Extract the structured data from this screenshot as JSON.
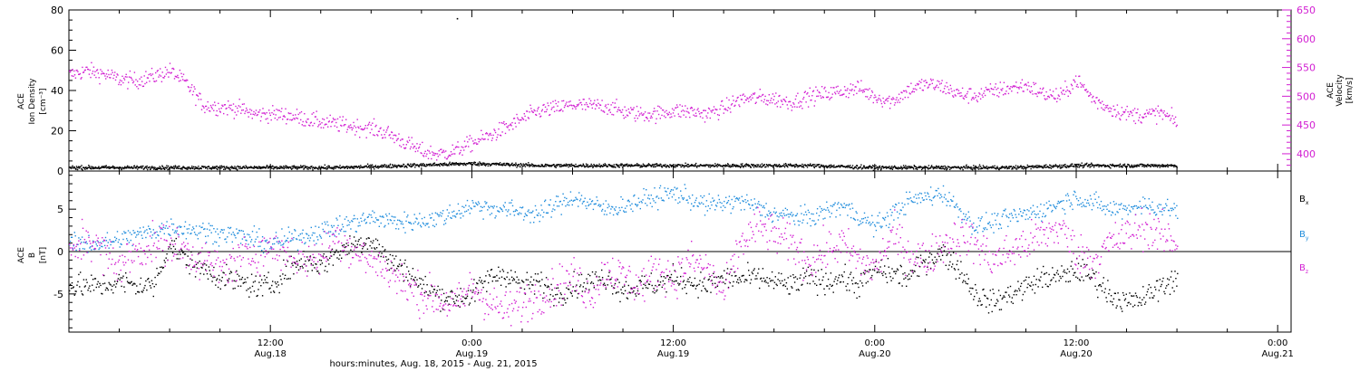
{
  "colors": {
    "ink": "#000000",
    "magenta": "#d21ed2",
    "blue": "#1e8cdc"
  },
  "top_panel": {
    "left_label": [
      "ACE",
      "Ion Density",
      "[cm⁻³]"
    ],
    "right_label": [
      "ACE",
      "Velocity",
      "[km/s]"
    ]
  },
  "bottom_panel": {
    "left_label": [
      "ACE",
      "B",
      "[nT]"
    ],
    "legend": [
      {
        "name": "B",
        "sub": "x",
        "color": "#000000"
      },
      {
        "name": "B",
        "sub": "y",
        "color": "#1e8cdc"
      },
      {
        "name": "B",
        "sub": "z",
        "color": "#d21ed2"
      }
    ]
  },
  "xaxis": {
    "title": "hours:minutes, Aug. 18, 2015 - Aug. 21, 2015",
    "ticks": [
      {
        "h": 12,
        "time": "12:00",
        "date": "Aug.18"
      },
      {
        "h": 24,
        "time": "0:00",
        "date": "Aug.19"
      },
      {
        "h": 36,
        "time": "12:00",
        "date": "Aug.19"
      },
      {
        "h": 48,
        "time": "0:00",
        "date": "Aug.20"
      },
      {
        "h": 60,
        "time": "12:00",
        "date": "Aug.20"
      },
      {
        "h": 72,
        "time": "0:00",
        "date": "Aug.21"
      }
    ]
  },
  "chart_data": [
    {
      "type": "scatter",
      "panel": "top",
      "xlim_hours": [
        0,
        72.8
      ],
      "ylim_left": [
        0,
        80
      ],
      "yticks_left": [
        0,
        20,
        40,
        60,
        80
      ],
      "ylim_right": [
        370,
        650
      ],
      "yticks_right": [
        400,
        450,
        500,
        550,
        600,
        650
      ],
      "series": [
        {
          "axis": "left",
          "color": "#000000",
          "scatter": 0.8,
          "x": [
            0,
            4,
            8,
            12,
            16,
            20,
            24,
            28,
            32,
            36,
            40,
            44,
            48,
            52,
            56,
            60,
            64,
            66
          ],
          "y": [
            2,
            2,
            2,
            2,
            2,
            3,
            4,
            3,
            3,
            3,
            3,
            3,
            2,
            2,
            2,
            3,
            3,
            3
          ]
        },
        {
          "axis": "right",
          "color": "#d21ed2",
          "scatter": 12,
          "x": [
            0,
            1,
            2,
            3,
            4,
            5,
            6,
            7,
            8,
            9,
            10,
            11,
            12,
            13,
            14,
            15,
            16,
            17,
            18,
            19,
            20,
            21,
            22,
            23,
            24,
            25,
            26,
            27,
            28,
            29,
            30,
            31,
            32,
            33,
            34,
            35,
            36,
            37,
            38,
            39,
            40,
            41,
            42,
            43,
            44,
            45,
            46,
            47,
            48,
            49,
            50,
            51,
            52,
            53,
            54,
            55,
            56,
            57,
            58,
            59,
            60,
            61,
            62,
            63,
            64,
            65,
            66
          ],
          "y": [
            538,
            545,
            540,
            530,
            528,
            535,
            545,
            522,
            485,
            482,
            480,
            470,
            470,
            468,
            462,
            456,
            452,
            448,
            445,
            436,
            420,
            405,
            400,
            406,
            420,
            432,
            446,
            462,
            476,
            480,
            486,
            484,
            484,
            474,
            470,
            470,
            476,
            474,
            470,
            480,
            496,
            498,
            496,
            490,
            500,
            505,
            510,
            515,
            500,
            492,
            512,
            522,
            518,
            504,
            502,
            510,
            515,
            520,
            505,
            500,
            530,
            495,
            480,
            470,
            468,
            472,
            455
          ]
        }
      ]
    },
    {
      "type": "scatter",
      "panel": "bottom",
      "xlim_hours": [
        0,
        72.8
      ],
      "ylim": [
        -9.5,
        9.5
      ],
      "yticks": [
        -5,
        0,
        5
      ],
      "series": [
        {
          "name": "Bx",
          "color": "#000000",
          "scatter": 1.2,
          "x": [
            0,
            1,
            2,
            3,
            4,
            5,
            6,
            7,
            8,
            9,
            10,
            11,
            12,
            13,
            14,
            15,
            16,
            17,
            18,
            19,
            20,
            21,
            22,
            23,
            24,
            25,
            26,
            27,
            28,
            29,
            30,
            31,
            32,
            33,
            34,
            35,
            36,
            37,
            38,
            39,
            40,
            41,
            42,
            43,
            44,
            45,
            46,
            47,
            48,
            49,
            50,
            51,
            52,
            53,
            54,
            55,
            56,
            57,
            58,
            59,
            60,
            61,
            62,
            63,
            64,
            65,
            66
          ],
          "y": [
            -4,
            -4,
            -4,
            -3.5,
            -4,
            -4,
            1,
            -1,
            -2,
            -3,
            -3.5,
            -4,
            -4,
            -2,
            -1,
            -1.5,
            0,
            1,
            1.5,
            -1,
            -2,
            -4,
            -5,
            -5.5,
            -5,
            -3,
            -2.5,
            -4,
            -3.5,
            -5,
            -4,
            -3.5,
            -3,
            -4.5,
            -4,
            -3.8,
            -3,
            -3.5,
            -4,
            -3,
            -3.2,
            -3,
            -3.5,
            -4,
            -3,
            -3.5,
            -3,
            -4,
            -2,
            -2.5,
            -3,
            -1,
            0,
            -2,
            -5,
            -6,
            -5,
            -4,
            -3,
            -3,
            -2,
            -3,
            -5,
            -6,
            -5.5,
            -4,
            -3
          ]
        },
        {
          "name": "By",
          "color": "#1e8cdc",
          "scatter": 1.0,
          "x": [
            0,
            2,
            4,
            6,
            8,
            10,
            12,
            14,
            16,
            18,
            20,
            22,
            24,
            26,
            28,
            30,
            32,
            34,
            36,
            38,
            40,
            42,
            44,
            46,
            48,
            50,
            52,
            54,
            56,
            58,
            60,
            62,
            64,
            66
          ],
          "y": [
            1,
            1,
            2,
            3,
            2.5,
            2,
            1,
            2,
            3,
            4,
            3.5,
            4,
            5.5,
            5,
            4.5,
            6.5,
            5,
            6,
            7,
            5.5,
            6,
            4.5,
            4,
            5.5,
            3,
            6,
            7,
            3,
            4,
            5,
            6.5,
            5,
            5.5,
            5
          ]
        },
        {
          "name": "Bz",
          "color": "#d21ed2",
          "scatter": 2.0,
          "x": [
            0,
            1,
            2,
            3,
            4,
            5,
            6,
            7,
            8,
            9,
            10,
            11,
            12,
            13,
            14,
            15,
            16,
            17,
            18,
            19,
            20,
            21,
            22,
            23,
            24,
            25,
            26,
            27,
            28,
            29,
            30,
            31,
            32,
            33,
            34,
            35,
            36,
            37,
            38,
            39,
            40,
            41,
            42,
            43,
            44,
            45,
            46,
            47,
            48,
            49,
            50,
            51,
            52,
            53,
            54,
            55,
            56,
            57,
            58,
            59,
            60,
            61,
            62,
            63,
            64,
            65,
            66
          ],
          "y": [
            -1,
            2,
            0,
            -1.5,
            0,
            1,
            1,
            0,
            -1,
            -2,
            -1,
            0,
            0.5,
            0,
            -1,
            -0.5,
            2,
            0,
            -1,
            -2,
            -4,
            -5,
            -5.5,
            -6.5,
            -4,
            -6,
            -7,
            -6,
            -5,
            -4,
            -3,
            -5,
            -2,
            -3,
            -4,
            -2,
            -3,
            -1,
            -2,
            -5,
            1,
            3,
            2,
            1,
            -1,
            0,
            1,
            -1,
            -2,
            2,
            0,
            -1,
            1,
            2,
            1,
            -1,
            0,
            1,
            2,
            3,
            0,
            -1,
            1,
            2,
            3,
            2,
            1
          ]
        }
      ]
    }
  ]
}
